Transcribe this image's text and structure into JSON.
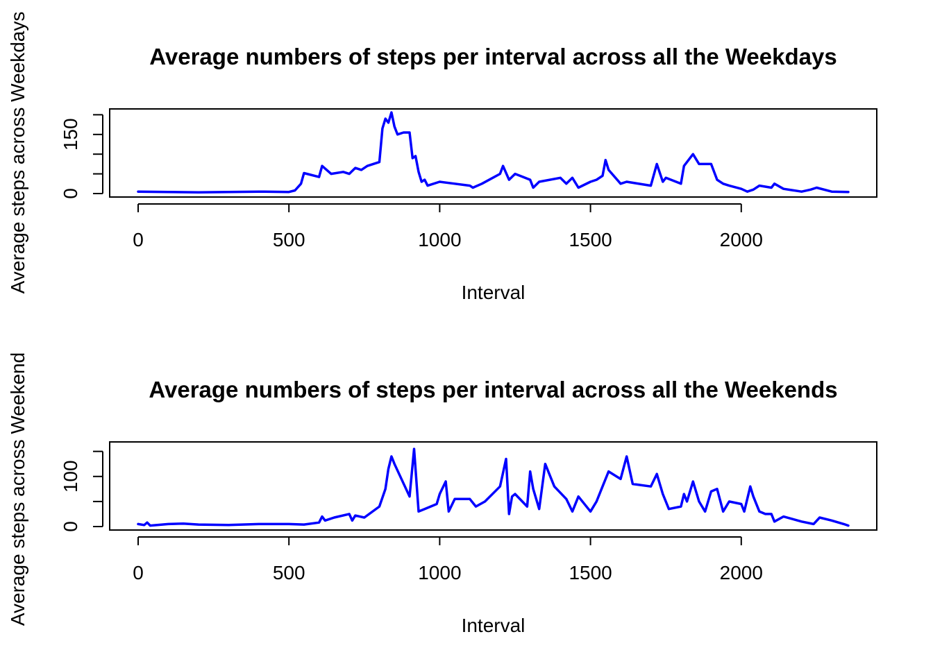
{
  "chart_data": [
    {
      "type": "line",
      "title": "Average numbers of steps per interval across all the Weekdays",
      "xlabel": "Interval",
      "ylabel": "Average steps across Weekdays",
      "xlim": [
        0,
        2355
      ],
      "ylim": [
        0,
        206
      ],
      "xticks": [
        0,
        500,
        1000,
        1500,
        2000
      ],
      "yticks": [
        0,
        50,
        100,
        150,
        200
      ],
      "ytick_labels": [
        "0",
        "",
        "",
        "150",
        ""
      ],
      "color": "#0000ff",
      "series": [
        {
          "x": [
            0,
            100,
            200,
            300,
            400,
            500,
            520,
            540,
            550,
            600,
            610,
            640,
            680,
            700,
            720,
            740,
            760,
            800,
            810,
            820,
            830,
            840,
            850,
            860,
            880,
            900,
            910,
            920,
            930,
            940,
            950,
            960,
            1000,
            1050,
            1100,
            1110,
            1140,
            1200,
            1210,
            1230,
            1250,
            1300,
            1310,
            1330,
            1400,
            1420,
            1440,
            1460,
            1500,
            1520,
            1540,
            1550,
            1560,
            1600,
            1620,
            1700,
            1720,
            1740,
            1750,
            1800,
            1810,
            1840,
            1860,
            1900,
            1920,
            1940,
            1960,
            2000,
            2020,
            2040,
            2060,
            2100,
            2110,
            2140,
            2200,
            2230,
            2250,
            2300,
            2355
          ],
          "values": [
            5,
            4,
            3,
            4,
            5,
            4,
            8,
            25,
            52,
            42,
            70,
            50,
            55,
            50,
            65,
            60,
            70,
            80,
            165,
            190,
            180,
            206,
            170,
            150,
            155,
            155,
            90,
            95,
            55,
            30,
            35,
            20,
            30,
            25,
            20,
            15,
            25,
            50,
            70,
            35,
            50,
            35,
            15,
            30,
            40,
            25,
            40,
            15,
            30,
            35,
            45,
            85,
            60,
            25,
            30,
            20,
            75,
            30,
            40,
            25,
            70,
            100,
            75,
            75,
            35,
            25,
            20,
            12,
            5,
            10,
            20,
            15,
            25,
            12,
            5,
            10,
            15,
            5,
            4
          ]
        }
      ]
    },
    {
      "type": "line",
      "title": "Average numbers of steps per interval across all the Weekends",
      "xlabel": "Interval",
      "ylabel": "Average steps across Weekend",
      "xlim": [
        0,
        2355
      ],
      "ylim": [
        0,
        162
      ],
      "xticks": [
        0,
        500,
        1000,
        1500,
        2000
      ],
      "yticks": [
        0,
        50,
        100,
        150
      ],
      "ytick_labels": [
        "0",
        "",
        "100",
        ""
      ],
      "color": "#0000ff",
      "series": [
        {
          "x": [
            0,
            20,
            30,
            40,
            100,
            150,
            200,
            300,
            400,
            500,
            550,
            600,
            610,
            620,
            650,
            700,
            710,
            720,
            750,
            800,
            820,
            830,
            840,
            850,
            900,
            915,
            930,
            950,
            990,
            1000,
            1020,
            1030,
            1050,
            1100,
            1120,
            1150,
            1200,
            1220,
            1230,
            1240,
            1250,
            1290,
            1300,
            1310,
            1330,
            1350,
            1380,
            1420,
            1440,
            1460,
            1500,
            1520,
            1540,
            1560,
            1600,
            1620,
            1640,
            1700,
            1720,
            1740,
            1760,
            1800,
            1810,
            1820,
            1840,
            1860,
            1880,
            1900,
            1920,
            1940,
            1960,
            2000,
            2010,
            2030,
            2040,
            2060,
            2080,
            2100,
            2110,
            2140,
            2200,
            2240,
            2260,
            2300,
            2340,
            2355
          ],
          "values": [
            5,
            3,
            8,
            2,
            5,
            6,
            4,
            3,
            5,
            5,
            4,
            8,
            20,
            12,
            18,
            25,
            12,
            22,
            18,
            40,
            75,
            115,
            140,
            125,
            60,
            155,
            30,
            35,
            45,
            65,
            90,
            30,
            55,
            55,
            40,
            50,
            80,
            135,
            25,
            60,
            65,
            40,
            110,
            75,
            35,
            125,
            80,
            55,
            30,
            60,
            30,
            50,
            80,
            110,
            95,
            140,
            85,
            80,
            105,
            65,
            35,
            40,
            65,
            50,
            90,
            50,
            30,
            70,
            75,
            30,
            50,
            45,
            30,
            80,
            60,
            30,
            25,
            25,
            10,
            20,
            10,
            5,
            18,
            12,
            5,
            2
          ]
        }
      ]
    }
  ]
}
